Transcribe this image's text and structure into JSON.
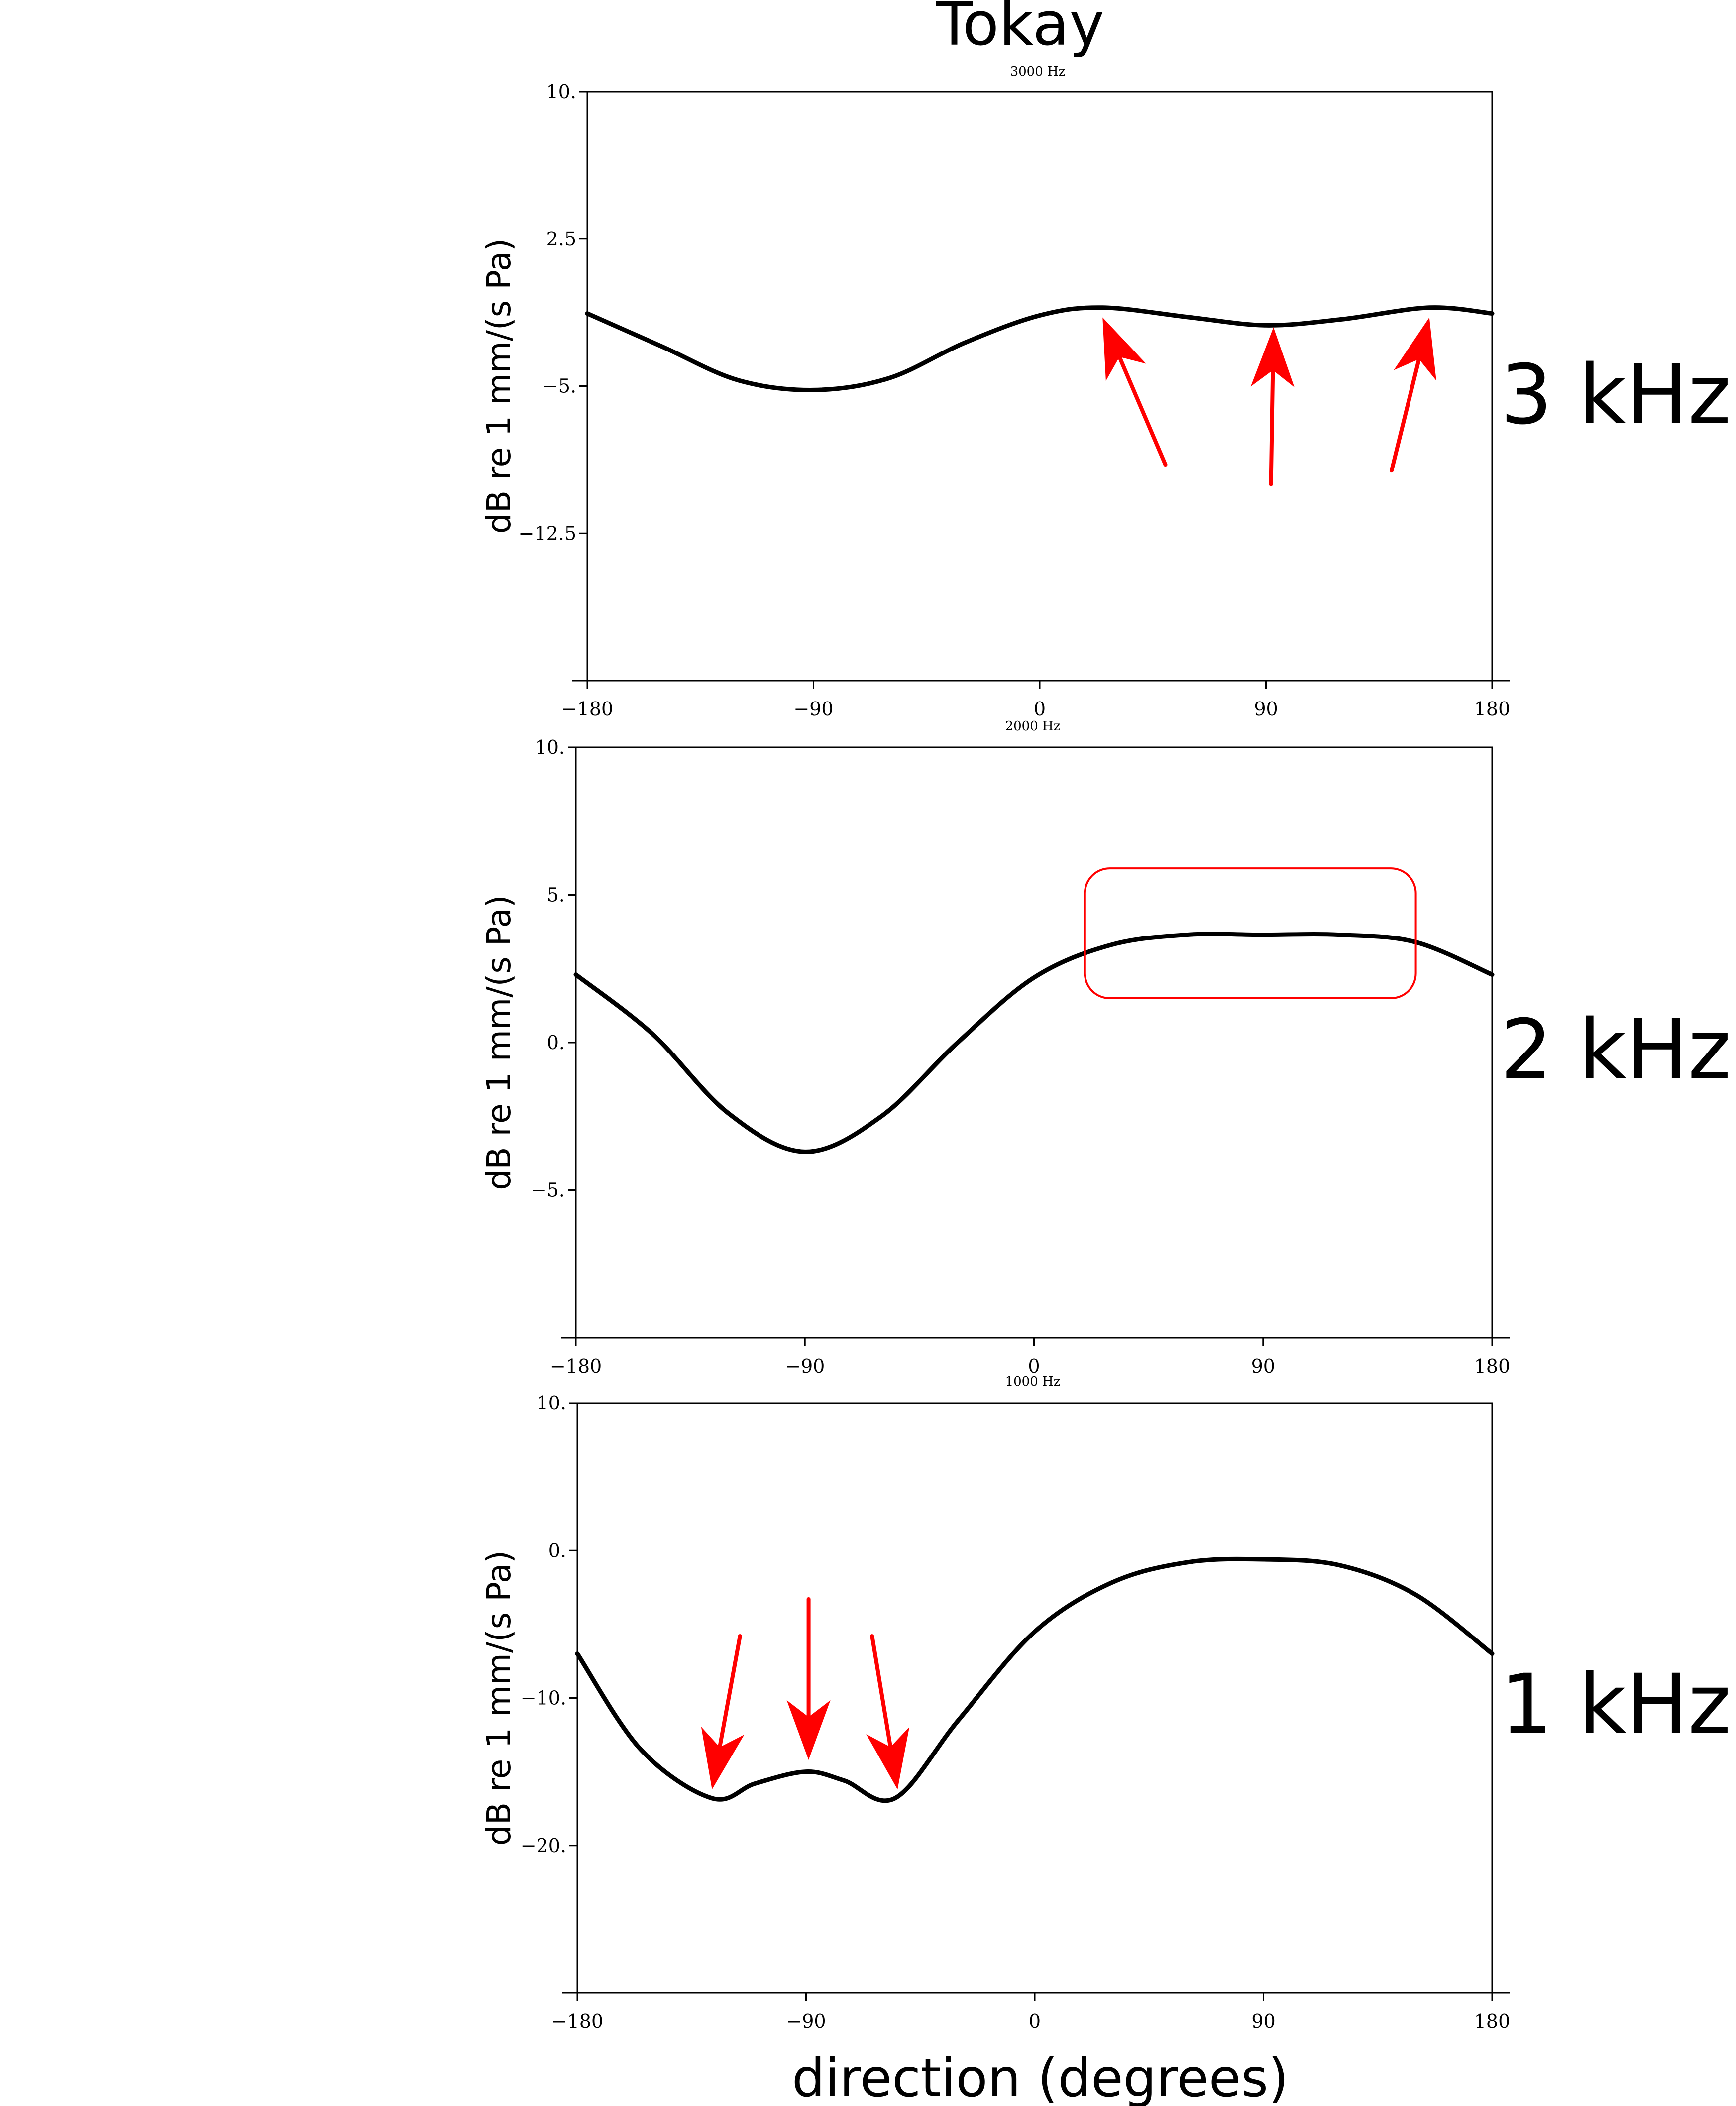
{
  "figure": {
    "title": "Tokay",
    "xlabel": "direction (degrees)"
  },
  "colors": {
    "curve": "#000000",
    "annotation": "#ff0000",
    "background": "#ffffff"
  },
  "chart_data": [
    {
      "type": "line",
      "subtitle": "3000 Hz",
      "side_label": "3 kHz",
      "ylabel": "dB re 1 mm/(s Pa)",
      "xlim": [
        -180,
        180
      ],
      "ylim": [
        -20,
        10
      ],
      "xticks": [
        -180,
        -90,
        0,
        90,
        180
      ],
      "xtick_labels": [
        "−180",
        "−90",
        "0",
        "90",
        "180"
      ],
      "yticks": [
        10,
        2.5,
        -5,
        -12.5
      ],
      "ytick_labels": [
        "10.",
        "2.5",
        "−5.",
        "−12.5"
      ],
      "x": [
        -180,
        -150,
        -120,
        -90,
        -60,
        -30,
        0,
        25,
        60,
        90,
        120,
        155,
        180
      ],
      "y": [
        -1.3,
        -3.0,
        -4.7,
        -5.2,
        -4.6,
        -2.8,
        -1.4,
        -1.0,
        -1.5,
        -1.9,
        -1.6,
        -1.0,
        -1.3
      ],
      "annotations": [
        {
          "kind": "arrow",
          "from": [
            50,
            -9.0
          ],
          "to": [
            25,
            -1.5
          ]
        },
        {
          "kind": "arrow",
          "from": [
            92,
            -10.0
          ],
          "to": [
            93,
            -2.0
          ]
        },
        {
          "kind": "arrow",
          "from": [
            140,
            -9.3
          ],
          "to": [
            155,
            -1.5
          ]
        }
      ],
      "grid": false
    },
    {
      "type": "line",
      "subtitle": "2000 Hz",
      "side_label": "2 kHz",
      "ylabel": "dB re 1 mm/(s Pa)",
      "xlim": [
        -180,
        180
      ],
      "ylim": [
        -10,
        10
      ],
      "xticks": [
        -180,
        -90,
        0,
        90,
        180
      ],
      "xtick_labels": [
        "−180",
        "−90",
        "0",
        "90",
        "180"
      ],
      "yticks": [
        10,
        5,
        0,
        -5
      ],
      "ytick_labels": [
        "10.",
        "5.",
        "0.",
        "−5."
      ],
      "x": [
        -180,
        -150,
        -120,
        -90,
        -60,
        -30,
        0,
        30,
        60,
        90,
        120,
        150,
        180
      ],
      "y": [
        2.3,
        0.3,
        -2.4,
        -3.7,
        -2.5,
        0.0,
        2.2,
        3.3,
        3.65,
        3.65,
        3.65,
        3.4,
        2.3
      ],
      "annotations": [
        {
          "kind": "rounded-box",
          "x0": 20,
          "x1": 150,
          "y0": 1.5,
          "y1": 5.9
        }
      ],
      "grid": false
    },
    {
      "type": "line",
      "subtitle": "1000 Hz",
      "side_label": "1 kHz",
      "ylabel": "dB re 1 mm/(s Pa)",
      "xlim": [
        -180,
        180
      ],
      "ylim": [
        -30,
        10
      ],
      "xticks": [
        -180,
        -90,
        0,
        90,
        180
      ],
      "xtick_labels": [
        "−180",
        "−90",
        "0",
        "90",
        "180"
      ],
      "yticks": [
        10,
        0,
        -10,
        -20
      ],
      "ytick_labels": [
        "10.",
        "0.",
        "−10.",
        "−20."
      ],
      "x": [
        -180,
        -155,
        -127,
        -110,
        -90,
        -75,
        -55,
        -30,
        0,
        30,
        60,
        90,
        120,
        150,
        180
      ],
      "y": [
        -7.0,
        -13.5,
        -16.8,
        -15.8,
        -15.0,
        -15.6,
        -16.8,
        -11.5,
        -5.5,
        -2.2,
        -0.8,
        -0.6,
        -1.0,
        -3.0,
        -7.0
      ],
      "annotations": [
        {
          "kind": "arrow",
          "from": [
            -116,
            -5.8
          ],
          "to": [
            -127,
            -16.2
          ]
        },
        {
          "kind": "arrow",
          "from": [
            -89,
            -3.3
          ],
          "to": [
            -89,
            -14.2
          ]
        },
        {
          "kind": "arrow",
          "from": [
            -64,
            -5.8
          ],
          "to": [
            -54,
            -16.2
          ]
        }
      ],
      "grid": false
    }
  ]
}
